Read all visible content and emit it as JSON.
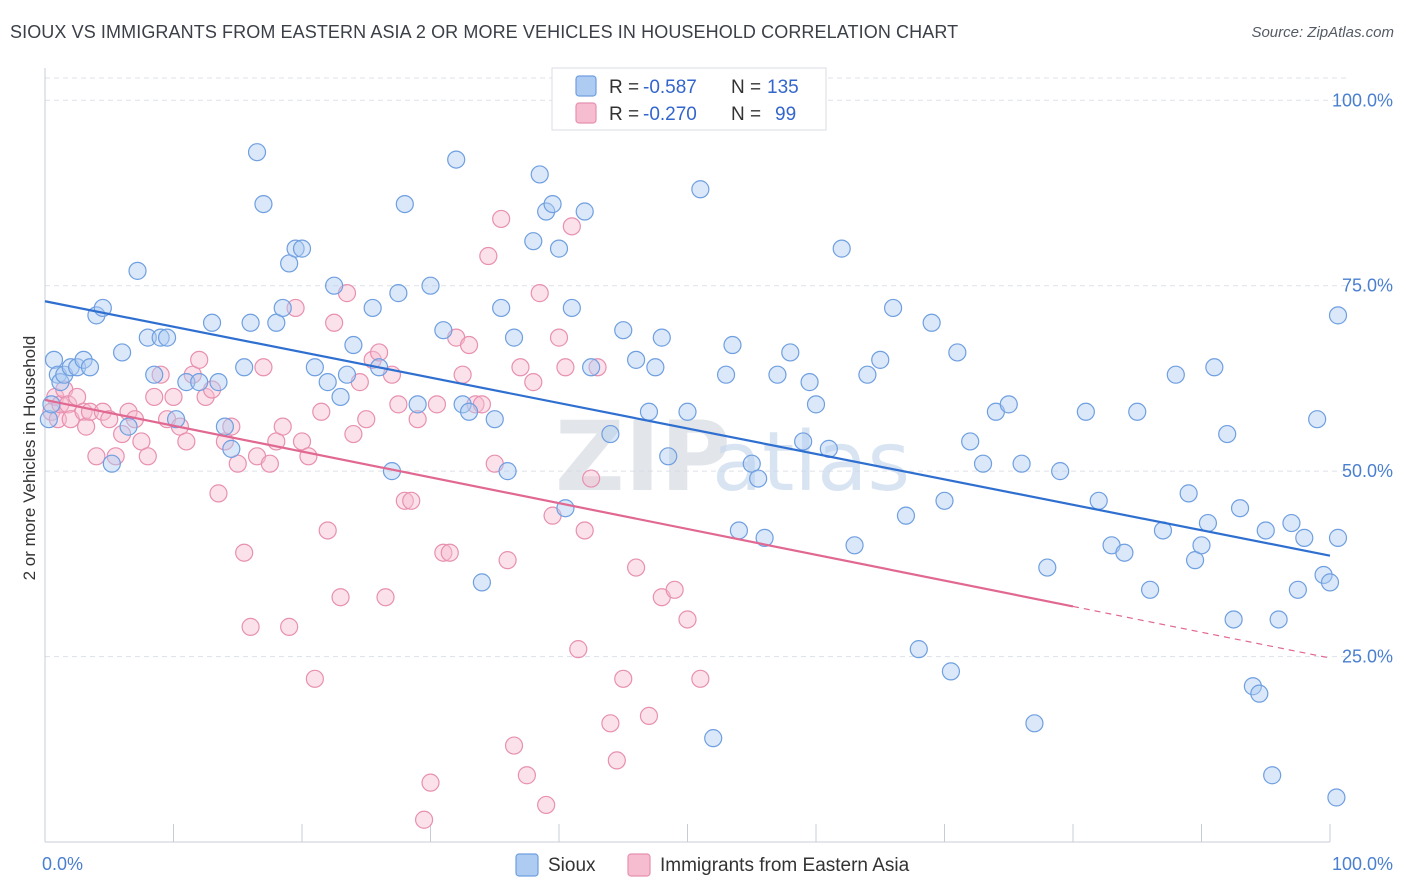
{
  "title": "SIOUX VS IMMIGRANTS FROM EASTERN ASIA 2 OR MORE VEHICLES IN HOUSEHOLD CORRELATION CHART",
  "source": "Source: ZipAtlas.com",
  "colors": {
    "sioux_fill": "#aecbf2",
    "sioux_stroke": "#6f9fe0",
    "sioux_line": "#2f6fd0",
    "imm_fill": "#f6bcd0",
    "imm_stroke": "#e890b0",
    "imm_line": "#e06891",
    "grid": "#dde1e8",
    "tick_label": "#4a7fd0"
  },
  "legend": {
    "rows": [
      {
        "r_label": "R =",
        "r_value": "-0.587",
        "n_label": "N =",
        "n_value": "135"
      },
      {
        "r_label": "R =",
        "r_value": "-0.270",
        "n_label": "N =",
        "n_value": "99"
      }
    ]
  },
  "bottom_legend": [
    "Sioux",
    "Immigrants from Eastern Asia"
  ],
  "watermark": {
    "zip": "ZIP",
    "atlas": "atlas"
  },
  "chart_data": {
    "type": "scatter",
    "xlabel": "",
    "ylabel": "2 or more Vehicles in Household",
    "xlim": [
      0,
      100
    ],
    "ylim": [
      0,
      103
    ],
    "x_tick_labels": [
      "0.0%",
      "100.0%"
    ],
    "y_ticks": [
      25,
      50,
      75,
      100
    ],
    "y_tick_labels": [
      "25.0%",
      "50.0%",
      "75.0%",
      "100.0%"
    ],
    "grid": true,
    "series": [
      {
        "name": "Sioux",
        "trend": {
          "x": [
            0,
            100
          ],
          "y": [
            72.9,
            38.6
          ],
          "dashed_from": null
        },
        "points": [
          [
            0.3,
            57
          ],
          [
            0.5,
            59
          ],
          [
            0.7,
            65
          ],
          [
            1.0,
            63
          ],
          [
            1.2,
            62
          ],
          [
            1.5,
            63
          ],
          [
            2.0,
            64
          ],
          [
            2.5,
            64
          ],
          [
            3.0,
            65
          ],
          [
            3.5,
            64
          ],
          [
            4.0,
            71
          ],
          [
            4.5,
            72
          ],
          [
            5.2,
            51
          ],
          [
            6.0,
            66
          ],
          [
            6.5,
            56
          ],
          [
            7.2,
            77
          ],
          [
            8.0,
            68
          ],
          [
            8.5,
            63
          ],
          [
            9.0,
            68
          ],
          [
            9.5,
            68
          ],
          [
            10.2,
            57
          ],
          [
            11.0,
            62
          ],
          [
            12.0,
            62
          ],
          [
            13.0,
            70
          ],
          [
            13.5,
            62
          ],
          [
            14.0,
            56
          ],
          [
            14.5,
            53
          ],
          [
            15.5,
            64
          ],
          [
            16.0,
            70
          ],
          [
            16.5,
            93
          ],
          [
            17.0,
            86
          ],
          [
            18.0,
            70
          ],
          [
            18.5,
            72
          ],
          [
            19.0,
            78
          ],
          [
            19.5,
            80
          ],
          [
            20.0,
            80
          ],
          [
            21.0,
            64
          ],
          [
            22.0,
            62
          ],
          [
            22.5,
            75
          ],
          [
            23.0,
            60
          ],
          [
            23.5,
            63
          ],
          [
            24.0,
            67
          ],
          [
            25.5,
            72
          ],
          [
            26.0,
            64
          ],
          [
            27.0,
            50
          ],
          [
            27.5,
            74
          ],
          [
            28.0,
            86
          ],
          [
            29.0,
            59
          ],
          [
            30.0,
            75
          ],
          [
            31.0,
            69
          ],
          [
            32.0,
            92
          ],
          [
            32.5,
            59
          ],
          [
            33.0,
            58
          ],
          [
            34.0,
            35
          ],
          [
            35.0,
            57
          ],
          [
            35.5,
            72
          ],
          [
            36.0,
            50
          ],
          [
            36.5,
            68
          ],
          [
            38.0,
            81
          ],
          [
            38.5,
            90
          ],
          [
            39.0,
            85
          ],
          [
            39.5,
            86
          ],
          [
            40.0,
            80
          ],
          [
            40.5,
            45
          ],
          [
            41.0,
            72
          ],
          [
            42.0,
            85
          ],
          [
            42.5,
            64
          ],
          [
            44.0,
            55
          ],
          [
            45.0,
            69
          ],
          [
            46.0,
            65
          ],
          [
            47.0,
            58
          ],
          [
            47.5,
            64
          ],
          [
            48.0,
            68
          ],
          [
            48.5,
            52
          ],
          [
            50.0,
            58
          ],
          [
            51.0,
            88
          ],
          [
            52.0,
            14
          ],
          [
            53.0,
            63
          ],
          [
            53.5,
            67
          ],
          [
            54.0,
            42
          ],
          [
            55.0,
            51
          ],
          [
            55.5,
            49
          ],
          [
            56.0,
            41
          ],
          [
            57.0,
            63
          ],
          [
            58.0,
            66
          ],
          [
            59.0,
            54
          ],
          [
            59.5,
            62
          ],
          [
            60.0,
            59
          ],
          [
            61.0,
            53
          ],
          [
            62.0,
            80
          ],
          [
            63.0,
            40
          ],
          [
            64.0,
            63
          ],
          [
            65.0,
            65
          ],
          [
            66.0,
            72
          ],
          [
            67.0,
            44
          ],
          [
            68.0,
            26
          ],
          [
            69.0,
            70
          ],
          [
            70.0,
            46
          ],
          [
            70.5,
            23
          ],
          [
            71.0,
            66
          ],
          [
            72.0,
            54
          ],
          [
            73.0,
            51
          ],
          [
            74.0,
            58
          ],
          [
            75.0,
            59
          ],
          [
            76.0,
            51
          ],
          [
            77.0,
            16
          ],
          [
            78.0,
            37
          ],
          [
            79.0,
            50
          ],
          [
            81.0,
            58
          ],
          [
            82.0,
            46
          ],
          [
            83.0,
            40
          ],
          [
            84.0,
            39
          ],
          [
            85.0,
            58
          ],
          [
            86.0,
            34
          ],
          [
            87.0,
            42
          ],
          [
            88.0,
            63
          ],
          [
            89.0,
            47
          ],
          [
            89.5,
            38
          ],
          [
            90.0,
            40
          ],
          [
            90.5,
            43
          ],
          [
            91.0,
            64
          ],
          [
            92.0,
            55
          ],
          [
            92.5,
            30
          ],
          [
            93.0,
            45
          ],
          [
            94.0,
            21
          ],
          [
            94.5,
            20
          ],
          [
            95.0,
            42
          ],
          [
            95.5,
            9
          ],
          [
            96.0,
            30
          ],
          [
            97.0,
            43
          ],
          [
            97.5,
            34
          ],
          [
            98.0,
            41
          ],
          [
            99.0,
            57
          ],
          [
            99.5,
            36
          ],
          [
            100.0,
            35
          ],
          [
            100.5,
            6
          ],
          [
            101.0,
            71
          ],
          [
            102.0,
            41
          ]
        ]
      },
      {
        "name": "Immigrants from Eastern Asia",
        "trend": {
          "x": [
            0,
            100
          ],
          "y": [
            59.6,
            24.8
          ],
          "dashed_from": 80
        },
        "points": [
          [
            0.5,
            58
          ],
          [
            0.8,
            60
          ],
          [
            1.0,
            57
          ],
          [
            1.2,
            59
          ],
          [
            1.5,
            61
          ],
          [
            1.8,
            59
          ],
          [
            2.0,
            57
          ],
          [
            2.5,
            60
          ],
          [
            3.0,
            58
          ],
          [
            3.2,
            56
          ],
          [
            3.5,
            58
          ],
          [
            4.0,
            52
          ],
          [
            4.5,
            58
          ],
          [
            5.0,
            57
          ],
          [
            5.5,
            52
          ],
          [
            6.0,
            55
          ],
          [
            6.5,
            58
          ],
          [
            7.0,
            57
          ],
          [
            7.5,
            54
          ],
          [
            8.0,
            52
          ],
          [
            8.5,
            60
          ],
          [
            9.0,
            63
          ],
          [
            9.5,
            57
          ],
          [
            10.0,
            60
          ],
          [
            10.5,
            56
          ],
          [
            11.0,
            54
          ],
          [
            11.5,
            63
          ],
          [
            12.0,
            65
          ],
          [
            12.5,
            60
          ],
          [
            13.0,
            61
          ],
          [
            13.5,
            47
          ],
          [
            14.0,
            54
          ],
          [
            14.5,
            56
          ],
          [
            15.0,
            51
          ],
          [
            15.5,
            39
          ],
          [
            16.0,
            29
          ],
          [
            16.5,
            52
          ],
          [
            17.0,
            64
          ],
          [
            17.5,
            51
          ],
          [
            18.0,
            54
          ],
          [
            18.5,
            56
          ],
          [
            19.0,
            29
          ],
          [
            19.5,
            72
          ],
          [
            20.0,
            54
          ],
          [
            20.5,
            52
          ],
          [
            21.0,
            22
          ],
          [
            21.5,
            58
          ],
          [
            22.0,
            42
          ],
          [
            22.5,
            70
          ],
          [
            23.0,
            33
          ],
          [
            23.5,
            74
          ],
          [
            24.0,
            55
          ],
          [
            24.5,
            62
          ],
          [
            25.0,
            57
          ],
          [
            25.5,
            65
          ],
          [
            26.0,
            66
          ],
          [
            26.5,
            33
          ],
          [
            27.0,
            63
          ],
          [
            27.5,
            59
          ],
          [
            28.0,
            46
          ],
          [
            28.5,
            46
          ],
          [
            29.0,
            57
          ],
          [
            29.5,
            3
          ],
          [
            30.0,
            8
          ],
          [
            30.5,
            59
          ],
          [
            31.0,
            39
          ],
          [
            31.5,
            39
          ],
          [
            32.0,
            68
          ],
          [
            32.5,
            63
          ],
          [
            33.0,
            67
          ],
          [
            33.5,
            59
          ],
          [
            34.0,
            59
          ],
          [
            34.5,
            79
          ],
          [
            35.0,
            51
          ],
          [
            35.5,
            84
          ],
          [
            36.0,
            38
          ],
          [
            36.5,
            13
          ],
          [
            37.0,
            64
          ],
          [
            37.5,
            9
          ],
          [
            38.0,
            62
          ],
          [
            38.5,
            74
          ],
          [
            39.0,
            5
          ],
          [
            39.5,
            44
          ],
          [
            40.0,
            68
          ],
          [
            40.5,
            64
          ],
          [
            41.0,
            83
          ],
          [
            41.5,
            26
          ],
          [
            42.0,
            42
          ],
          [
            42.5,
            49
          ],
          [
            43.0,
            64
          ],
          [
            44.0,
            16
          ],
          [
            44.5,
            11
          ],
          [
            45.0,
            22
          ],
          [
            46.0,
            37
          ],
          [
            47.0,
            17
          ],
          [
            48.0,
            33
          ],
          [
            49.0,
            34
          ],
          [
            50.0,
            30
          ],
          [
            51.0,
            22
          ]
        ]
      }
    ]
  }
}
